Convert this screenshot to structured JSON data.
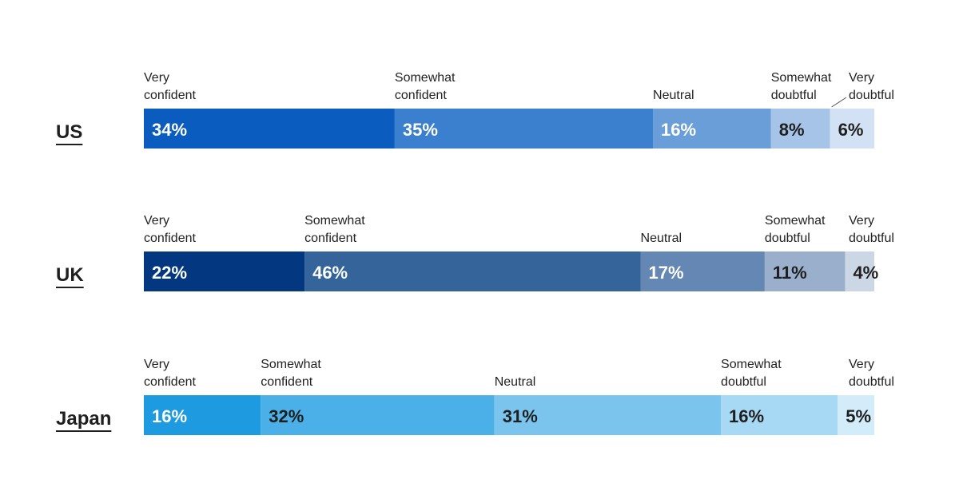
{
  "chart_data": {
    "type": "bar",
    "orientation": "horizontal",
    "stacked": true,
    "normalized": true,
    "title": "",
    "xlabel": "",
    "ylabel": "",
    "grid": false,
    "legend": "none",
    "categories": [
      "Very confident",
      "Somewhat confident",
      "Neutral",
      "Somewhat doubtful",
      "Very doubtful"
    ],
    "series": [
      {
        "name": "US",
        "values": [
          34,
          35,
          16,
          8,
          6
        ],
        "labels": [
          "34%",
          "35%",
          "16%",
          "8%",
          "6%"
        ],
        "colors": [
          "#0b5cbf",
          "#3b7fcf",
          "#6a9ed9",
          "#a6c4e8",
          "#d2e1f3"
        ]
      },
      {
        "name": "UK",
        "values": [
          22,
          46,
          17,
          11,
          4
        ],
        "labels": [
          "22%",
          "46%",
          "17%",
          "11%",
          "4%"
        ],
        "colors": [
          "#033880",
          "#346499",
          "#6587b3",
          "#9aafcc",
          "#ccd7e6"
        ]
      },
      {
        "name": "Japan",
        "values": [
          16,
          32,
          31,
          16,
          5
        ],
        "labels": [
          "16%",
          "32%",
          "31%",
          "16%",
          "5%"
        ],
        "colors": [
          "#1e9be0",
          "#4bb0e8",
          "#7bc4ee",
          "#a7d8f4",
          "#d3ecfa"
        ]
      }
    ]
  }
}
